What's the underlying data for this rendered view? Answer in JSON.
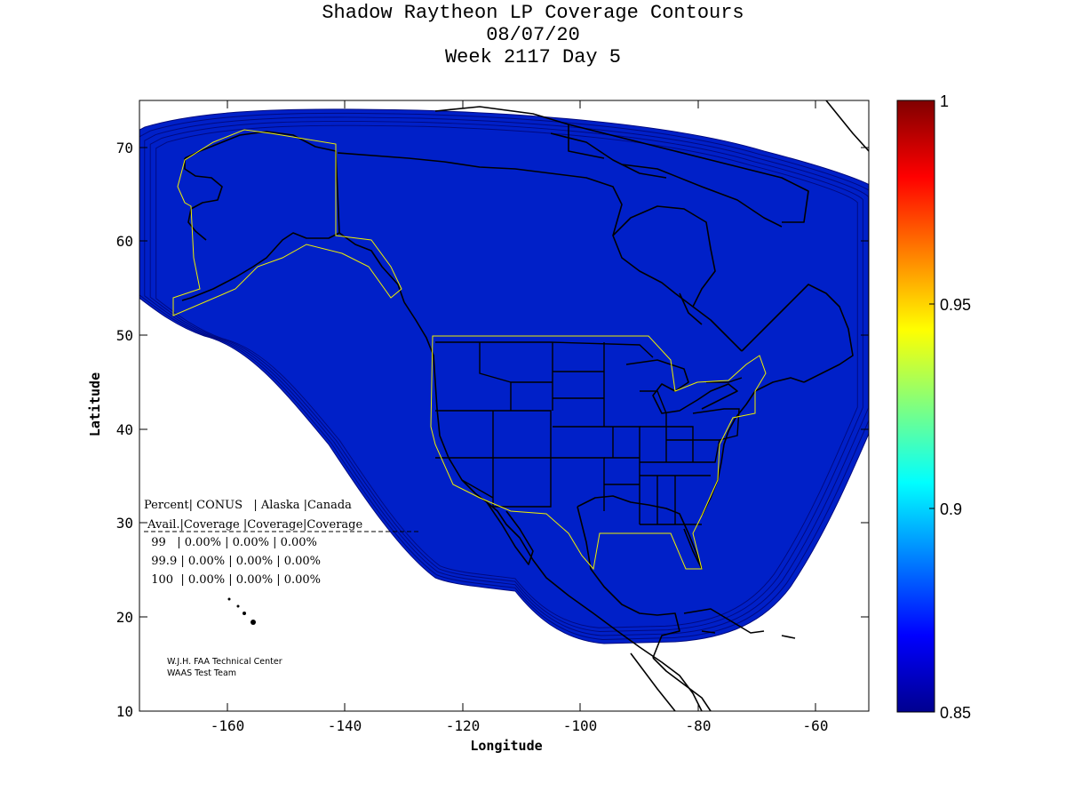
{
  "title": {
    "line1": "Shadow Raytheon LP Coverage Contours",
    "line2": "08/07/20",
    "line3": "Week 2117 Day 5"
  },
  "map": {
    "xlabel": "Longitude",
    "ylabel": "Latitude",
    "lon_range": [
      -174,
      -50
    ],
    "lat_range": [
      10,
      75
    ],
    "x_ticks": [
      "-160",
      "-140",
      "-120",
      "-100",
      "-80",
      "-60"
    ],
    "y_ticks": [
      "10",
      "20",
      "30",
      "40",
      "50",
      "60",
      "70"
    ]
  },
  "colorbar": {
    "range": [
      0.85,
      1
    ],
    "ticks": [
      "1",
      "0.95",
      "0.9",
      "0.85"
    ],
    "colormap": "jet"
  },
  "coverage_table": {
    "header1": "Percent| CONUS   | Alaska |Canada",
    "header2": " Avail.|Coverage |Coverage|Coverage",
    "rows": [
      "  99   | 0.00% | 0.00% | 0.00%",
      "  99.9 | 0.00% | 0.00% | 0.00%",
      "  100  | 0.00% | 0.00% | 0.00%"
    ]
  },
  "credits": {
    "line1": "W.J.H. FAA Technical Center",
    "line2": "WAAS Test Team"
  },
  "colors": {
    "coverage_fill": "#00ddf8",
    "edge_1": "#00b8f4",
    "edge_2": "#0090f0",
    "edge_3": "#0050e8",
    "edge_4": "#0020c8",
    "boundary": "#f0f000",
    "coastline": "#000000"
  }
}
